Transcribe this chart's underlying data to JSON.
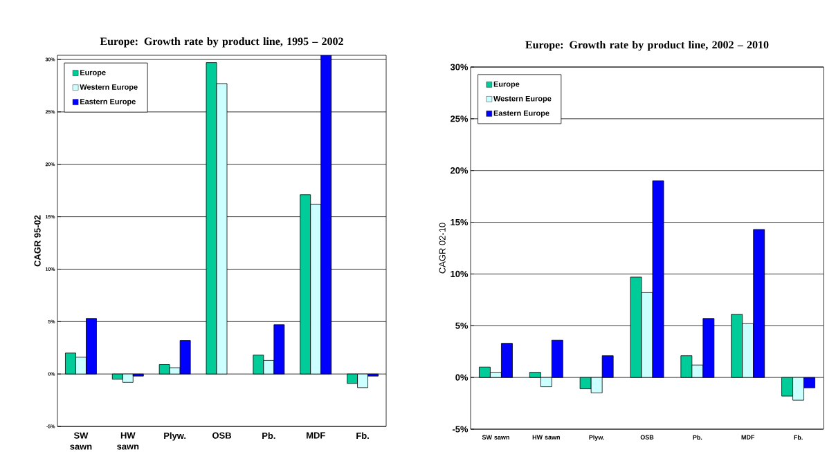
{
  "chart_data": [
    {
      "type": "bar",
      "title": "Europe: Growth rate by product line, 1995 – 2002",
      "ylabel": "CAGR 95-02",
      "categories": [
        "SW sawn",
        "HW sawn",
        "Plyw.",
        "OSB",
        "Pb.",
        "MDF",
        "Fb."
      ],
      "series": [
        {
          "name": "Europe",
          "color": "#00cc99",
          "values": [
            2.0,
            -0.5,
            0.9,
            29.7,
            1.8,
            17.1,
            -0.9
          ]
        },
        {
          "name": "Western Europe",
          "color": "#ccffff",
          "values": [
            1.6,
            -0.8,
            0.6,
            27.7,
            1.3,
            16.2,
            -1.3
          ]
        },
        {
          "name": "Eastern Europe",
          "color": "#0000ff",
          "values": [
            5.3,
            -0.2,
            3.2,
            null,
            4.7,
            30.4,
            -0.2
          ]
        }
      ],
      "ylim": [
        -5,
        30.4
      ],
      "yticks": [
        {
          "value": -5,
          "label": "-5%"
        },
        {
          "value": 0,
          "label": "0%"
        },
        {
          "value": 5,
          "label": "5%"
        },
        {
          "value": 10,
          "label": "10%"
        },
        {
          "value": 15,
          "label": "15%"
        },
        {
          "value": 20,
          "label": "20%"
        },
        {
          "value": 25,
          "label": "25%"
        },
        {
          "value": 30,
          "label": "30%"
        }
      ],
      "grid": "y",
      "legend": "top left"
    },
    {
      "type": "bar",
      "title": "Europe: Growth rate by product line, 2002 – 2010",
      "ylabel": "CAGR 02-10",
      "categories": [
        "SW sawn",
        "HW sawn",
        "Plyw.",
        "OSB",
        "Pb.",
        "MDF",
        "Fb."
      ],
      "series": [
        {
          "name": "Europe",
          "color": "#00cc99",
          "values": [
            1.0,
            0.5,
            -1.1,
            9.7,
            2.1,
            6.1,
            -1.8
          ]
        },
        {
          "name": "Western Europe",
          "color": "#ccffff",
          "values": [
            0.5,
            -0.9,
            -1.5,
            8.2,
            1.2,
            5.2,
            -2.2
          ]
        },
        {
          "name": "Eastern Europe",
          "color": "#0000ff",
          "values": [
            3.3,
            3.6,
            2.1,
            19.0,
            5.7,
            14.3,
            -1.0
          ]
        }
      ],
      "ylim": [
        -5,
        30
      ],
      "yticks": [
        {
          "value": -5,
          "label": "-5%"
        },
        {
          "value": 0,
          "label": "0%"
        },
        {
          "value": 5,
          "label": "5%"
        },
        {
          "value": 10,
          "label": "10%"
        },
        {
          "value": 15,
          "label": "15%"
        },
        {
          "value": 20,
          "label": "20%"
        },
        {
          "value": 25,
          "label": "25%"
        },
        {
          "value": 30,
          "label": "30%"
        }
      ],
      "grid": "y",
      "legend": "top left"
    }
  ]
}
